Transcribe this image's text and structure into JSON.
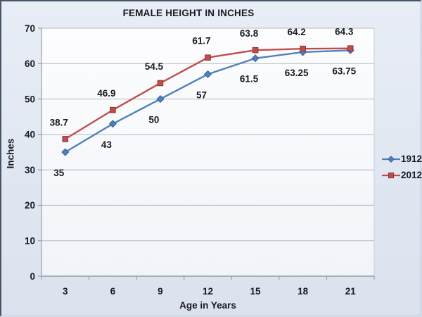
{
  "chart_data": {
    "type": "line",
    "title": "FEMALE HEIGHT IN INCHES",
    "xlabel": "Age in Years",
    "ylabel": "Inches",
    "categories": [
      3,
      6,
      9,
      12,
      15,
      18,
      21
    ],
    "y_ticks": [
      0,
      10,
      20,
      30,
      40,
      50,
      60,
      70
    ],
    "ylim": [
      0,
      70
    ],
    "grid": true,
    "legend_position": "right",
    "series": [
      {
        "name": "1912",
        "marker": "diamond",
        "color": "#4E81BB",
        "edge_color": "#365F96",
        "label_placement": "below",
        "values": [
          35,
          43,
          50,
          57,
          61.5,
          63.25,
          63.75
        ]
      },
      {
        "name": "2012",
        "marker": "square",
        "color": "#BF4E4B",
        "edge_color": "#8E3432",
        "label_placement": "above",
        "values": [
          38.7,
          46.9,
          54.5,
          61.7,
          63.8,
          64.2,
          64.3
        ]
      }
    ]
  },
  "palette": {
    "gridline": "#b5b9c1",
    "axis": "#99a0ab",
    "plot_top": "#fdfdfe",
    "plot_bottom": "#f1f4f9",
    "plot_border": "#c9cdd6",
    "text": "#181922"
  }
}
